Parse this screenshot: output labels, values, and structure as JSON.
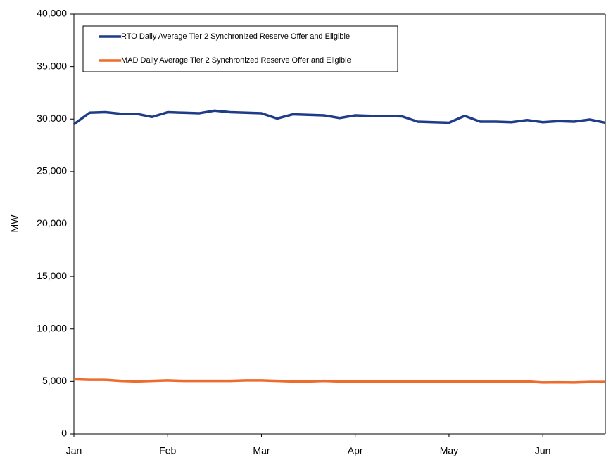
{
  "chart_data": {
    "type": "line",
    "y_label": "MW",
    "categories": [
      "Jan",
      null,
      null,
      null,
      null,
      null,
      "Feb",
      null,
      null,
      null,
      null,
      null,
      "Mar",
      null,
      null,
      null,
      null,
      null,
      "Apr",
      null,
      null,
      null,
      null,
      null,
      "May",
      null,
      null,
      null,
      null,
      null,
      "Jun",
      null,
      null,
      null,
      null
    ],
    "series": [
      {
        "name": "RTO Daily Average Tier 2 Synchronized Reserve Offer and Eligible",
        "color": "#1f3c88",
        "values": [
          29500,
          30600,
          30650,
          30500,
          30500,
          30200,
          30650,
          30600,
          30550,
          30800,
          30650,
          30600,
          30550,
          30050,
          30450,
          30400,
          30350,
          30100,
          30350,
          30300,
          30300,
          30250,
          29750,
          29700,
          29650,
          30300,
          29750,
          29750,
          29700,
          29900,
          29700,
          29800,
          29750,
          29950,
          29650
        ]
      },
      {
        "name": "MAD Daily Average Tier 2 Synchronized Reserve Offer and Eligible",
        "color": "#ed6b2c",
        "values": [
          5200,
          5150,
          5150,
          5050,
          5000,
          5050,
          5100,
          5050,
          5050,
          5050,
          5050,
          5100,
          5100,
          5050,
          5000,
          5000,
          5050,
          5000,
          5000,
          5000,
          4980,
          4980,
          4980,
          4980,
          4980,
          4980,
          5000,
          5000,
          5000,
          5000,
          4900,
          4920,
          4900,
          4950,
          4950
        ]
      }
    ],
    "ylim": [
      0,
      40000
    ],
    "yticks": [
      {
        "value": 0,
        "label": "0"
      },
      {
        "value": 5000,
        "label": "5,000"
      },
      {
        "value": 10000,
        "label": "10,000"
      },
      {
        "value": 15000,
        "label": "15,000"
      },
      {
        "value": 20000,
        "label": "20,000"
      },
      {
        "value": 25000,
        "label": "25,000"
      },
      {
        "value": 30000,
        "label": "30,000"
      },
      {
        "value": 35000,
        "label": "35,000"
      },
      {
        "value": 40000,
        "label": "40,000"
      }
    ],
    "grid": false,
    "legend": "upper left"
  }
}
